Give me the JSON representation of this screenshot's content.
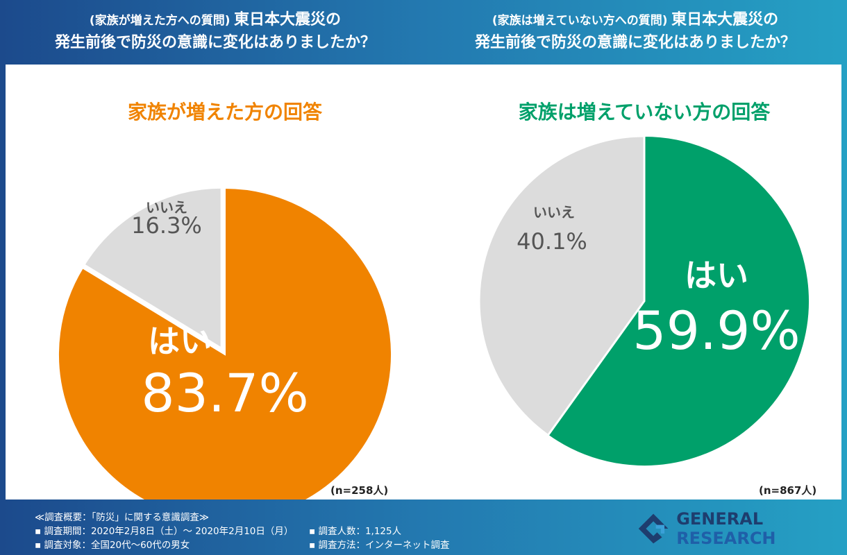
{
  "header": {
    "left": {
      "prefix": "(家族が増えた方への質問)",
      "title1": "東日本大震災の",
      "title2": "発生前後で防災の意識に変化はありましたか？"
    },
    "right": {
      "prefix": "(家族は増えていない方への質問)",
      "title1": "東日本大震災の",
      "title2": "発生前後で防災の意識に変化はありましたか？"
    }
  },
  "chart_data": [
    {
      "type": "pie",
      "title": "家族が増えた方の回答",
      "n_label": "(n=258人)",
      "slices": [
        {
          "label": "はい",
          "value": 83.7,
          "display": "83.7%",
          "color": "#f08300"
        },
        {
          "label": "いいえ",
          "value": 16.3,
          "display": "16.3%",
          "color": "#dcdcdc"
        }
      ],
      "title_color": "#f08300"
    },
    {
      "type": "pie",
      "title": "家族は増えていない方の回答",
      "n_label": "(n=867人)",
      "slices": [
        {
          "label": "はい",
          "value": 59.9,
          "display": "59.9%",
          "color": "#00a06a"
        },
        {
          "label": "いいえ",
          "value": 40.1,
          "display": "40.1%",
          "color": "#dcdcdc"
        }
      ],
      "title_color": "#00a06a"
    }
  ],
  "footer": {
    "heading": "≪調査概要：「防災」に関する意識調査≫",
    "period": "▪ 調査期間：2020年2月8日（土）～ 2020年2月10日（月）",
    "target": "▪ 調査対象：全国20代～60代の男女",
    "count": "▪ 調査人数：1,125人",
    "method": "▪ 調査方法：インターネット調査"
  },
  "logo": {
    "text_a": "GENERAL",
    "text_b": "RESEARCH",
    "color": "#1e3d6e"
  }
}
